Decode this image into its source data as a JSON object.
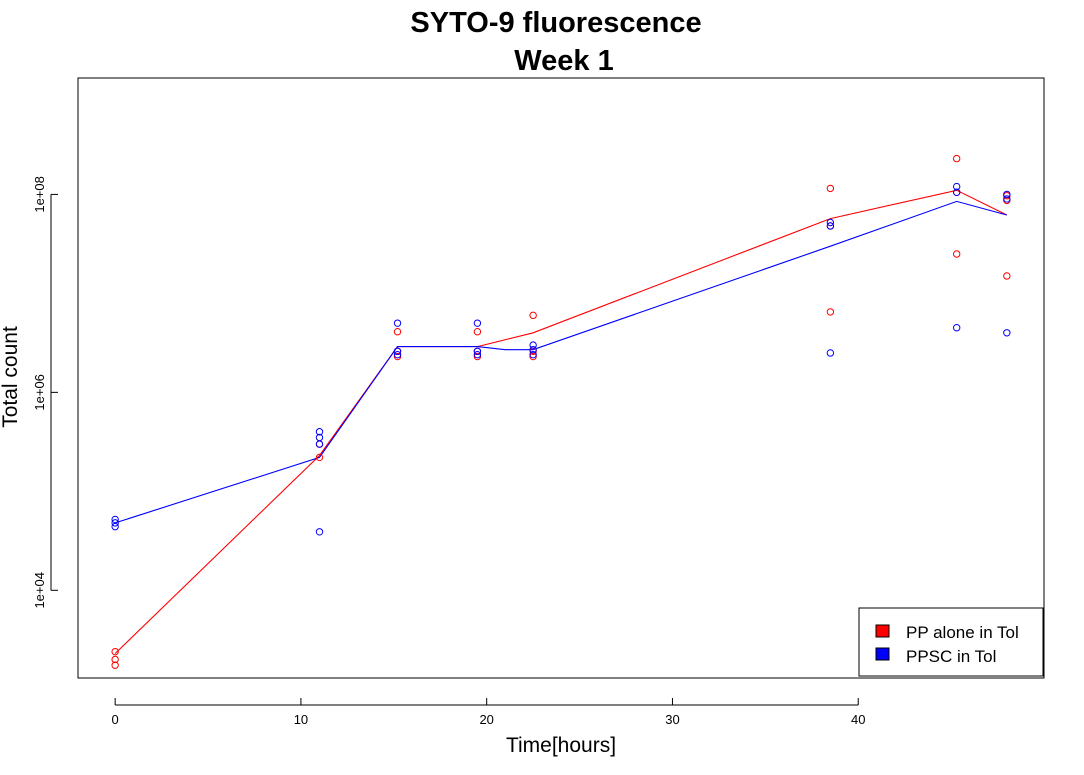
{
  "chart_data": {
    "type": "line",
    "title": "SYTO-9 fluorescence",
    "subtitle": "Week 1",
    "xlabel": "Time[hours]",
    "ylabel": "Total count",
    "xlim": [
      -2,
      50
    ],
    "ylim": [
      1300,
      1500000000
    ],
    "y_scale": "log",
    "x_ticks": [
      0,
      10,
      20,
      30,
      40
    ],
    "x_tick_labels": [
      "0",
      "10",
      "20",
      "30",
      "40"
    ],
    "y_ticks": [
      10000,
      1000000,
      100000000
    ],
    "y_tick_labels": [
      "1e+04",
      "1e+06",
      "1e+08"
    ],
    "grid": false,
    "legend_position": "bottom-right",
    "series": [
      {
        "name": "PP alone in Tol",
        "color": "#ff0000",
        "line": {
          "x": [
            0,
            11,
            15.2,
            19.5,
            22.5,
            38.5,
            45.3,
            48
          ],
          "y": [
            2300,
            230000,
            2900000,
            2900000,
            4000000,
            57000000,
            110000000,
            62000000
          ]
        },
        "points": {
          "x": [
            0,
            0,
            0,
            11,
            11,
            15.2,
            15.2,
            15.2,
            19.5,
            19.5,
            19.5,
            22.5,
            22.5,
            22.5,
            38.5,
            38.5,
            38.5,
            45.3,
            45.3,
            45.3,
            48,
            48,
            48
          ],
          "y": [
            2400,
            2000,
            1750,
            220000,
            300000,
            4100000,
            2600000,
            2300000,
            4100000,
            2600000,
            2300000,
            6000000,
            2600000,
            2300000,
            115000000,
            48000000,
            6500000,
            230000000,
            105000000,
            25000000,
            15000000,
            87000000,
            97000000
          ]
        }
      },
      {
        "name": "PPSC in Tol",
        "color": "#0000ff",
        "line": {
          "x": [
            0,
            11,
            15.2,
            19.5,
            21,
            22.5,
            38.5,
            45.3,
            48
          ],
          "y": [
            48000,
            220000,
            2900000,
            2900000,
            2700000,
            2700000,
            30000000,
            85000000,
            62000000
          ]
        },
        "points": {
          "x": [
            0,
            0,
            0,
            11,
            11,
            11,
            11,
            15.2,
            15.2,
            15.2,
            19.5,
            19.5,
            19.5,
            22.5,
            22.5,
            22.5,
            38.5,
            38.5,
            38.5,
            45.3,
            45.3,
            45.3,
            48,
            48,
            48
          ],
          "y": [
            52000,
            48000,
            44000,
            400000,
            350000,
            300000,
            39000,
            5000000,
            2600000,
            2400000,
            5000000,
            2600000,
            2400000,
            3000000,
            2700000,
            2400000,
            52000000,
            48000000,
            2500000,
            120000000,
            105000000,
            4500000,
            4000000,
            90000000,
            100000000
          ]
        }
      }
    ]
  }
}
